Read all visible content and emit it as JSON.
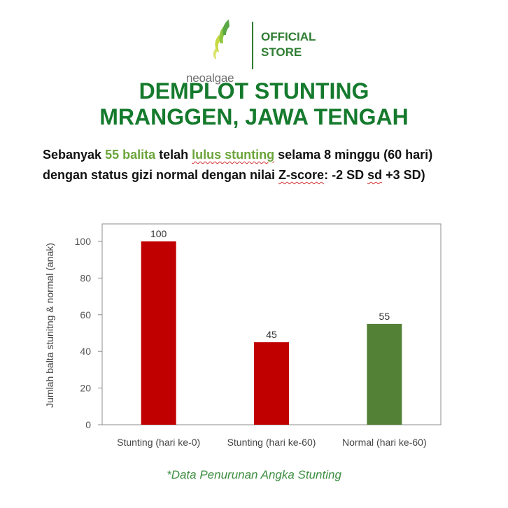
{
  "header": {
    "brand": "neoalgae",
    "store_line1": "OFFICIAL",
    "store_line2": "STORE",
    "colors": {
      "brand_green": "#2e7d32",
      "logo_light": "#c6d940",
      "logo_mid": "#7cbf3b"
    }
  },
  "title": {
    "line1": "DEMPLOT STUNTING",
    "line2": "MRANGGEN, JAWA TENGAH",
    "color": "#157a2d"
  },
  "subtitle": {
    "part1": "Sebanyak ",
    "count": "55 balita",
    "part2": " telah ",
    "status": "lulus stunting",
    "part3": " selama 8 minggu (60 hari)",
    "line2_part1": "dengan status gizi normal dengan nilai ",
    "zscore_label": "Z-score",
    "line2_part2": ": -2 SD ",
    "sd_word": "sd",
    "line2_part3": " +3 SD)"
  },
  "chart_data": {
    "type": "bar",
    "categories": [
      "Stunting (hari ke-0)",
      "Stunting (hari ke-60)",
      "Normal (hari ke-60)"
    ],
    "values": [
      100,
      45,
      55
    ],
    "bar_colors": [
      "#c00000",
      "#c00000",
      "#538135"
    ],
    "data_labels": [
      "100",
      "45",
      "55"
    ],
    "title": "",
    "xlabel": "",
    "ylabel": "Jumlah balta stunitng & normal (anak)",
    "ylim": [
      0,
      100
    ],
    "yticks": [
      0,
      20,
      40,
      60,
      80,
      100
    ],
    "grid": false,
    "legend": "none"
  },
  "footnote": "*Data Penurunan Angka Stunting"
}
